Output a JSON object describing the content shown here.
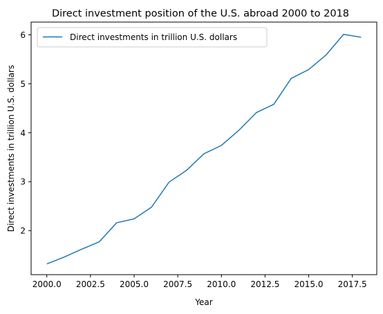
{
  "chart_data": {
    "type": "line",
    "title": "Direct investment position of the U.S. abroad 2000 to 2018",
    "xlabel": "Year",
    "ylabel": "Direct investments in trillion U.S. dollars",
    "xlim": [
      1999.1,
      2018.9
    ],
    "ylim": [
      1.1,
      6.26
    ],
    "xticks": [
      2000,
      2002.5,
      2005,
      2007.5,
      2010,
      2012.5,
      2015,
      2017.5
    ],
    "xtick_labels": [
      "2000.0",
      "2002.5",
      "2005.0",
      "2007.5",
      "2010.0",
      "2012.5",
      "2015.0",
      "2017.5"
    ],
    "yticks": [
      2,
      3,
      4,
      5,
      6
    ],
    "ytick_labels": [
      "2",
      "3",
      "4",
      "5",
      "6"
    ],
    "legend_position": "upper-left",
    "grid": false,
    "series": [
      {
        "name": "Direct investments in trillion U.S. dollars",
        "color": "#1f77b4",
        "x": [
          2000,
          2001,
          2002,
          2003,
          2004,
          2005,
          2006,
          2007,
          2008,
          2009,
          2010,
          2011,
          2012,
          2013,
          2014,
          2015,
          2016,
          2017,
          2018
        ],
        "values": [
          1.32,
          1.46,
          1.62,
          1.77,
          2.16,
          2.24,
          2.48,
          2.99,
          3.23,
          3.57,
          3.74,
          4.05,
          4.41,
          4.58,
          5.11,
          5.29,
          5.59,
          6.01,
          5.95
        ]
      }
    ]
  }
}
